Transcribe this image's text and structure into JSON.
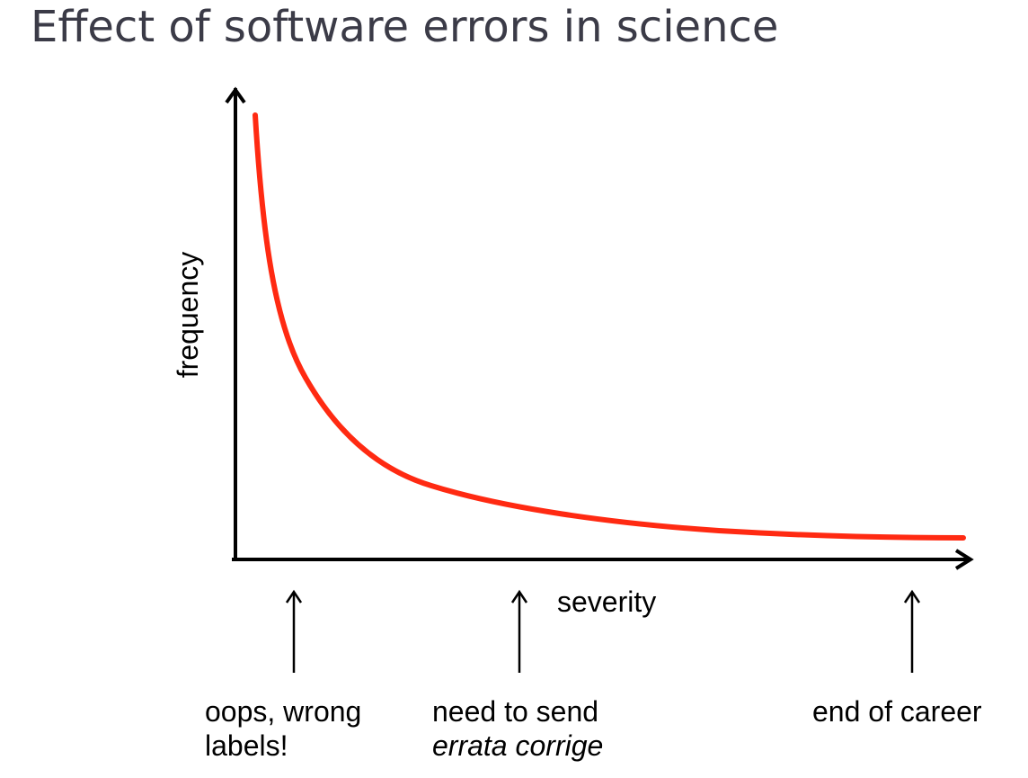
{
  "title": "Effect of software errors in science",
  "axes": {
    "y_label": "frequency",
    "x_label": "severity"
  },
  "annotations": [
    {
      "line1": "oops, wrong",
      "line2": "labels!"
    },
    {
      "line1": "need to send",
      "line2": "errata corrige"
    },
    {
      "line1": "end of career",
      "line2": ""
    }
  ],
  "colors": {
    "curve": "#ff2a12",
    "axes": "#000000",
    "title": "#3b3b47"
  }
}
